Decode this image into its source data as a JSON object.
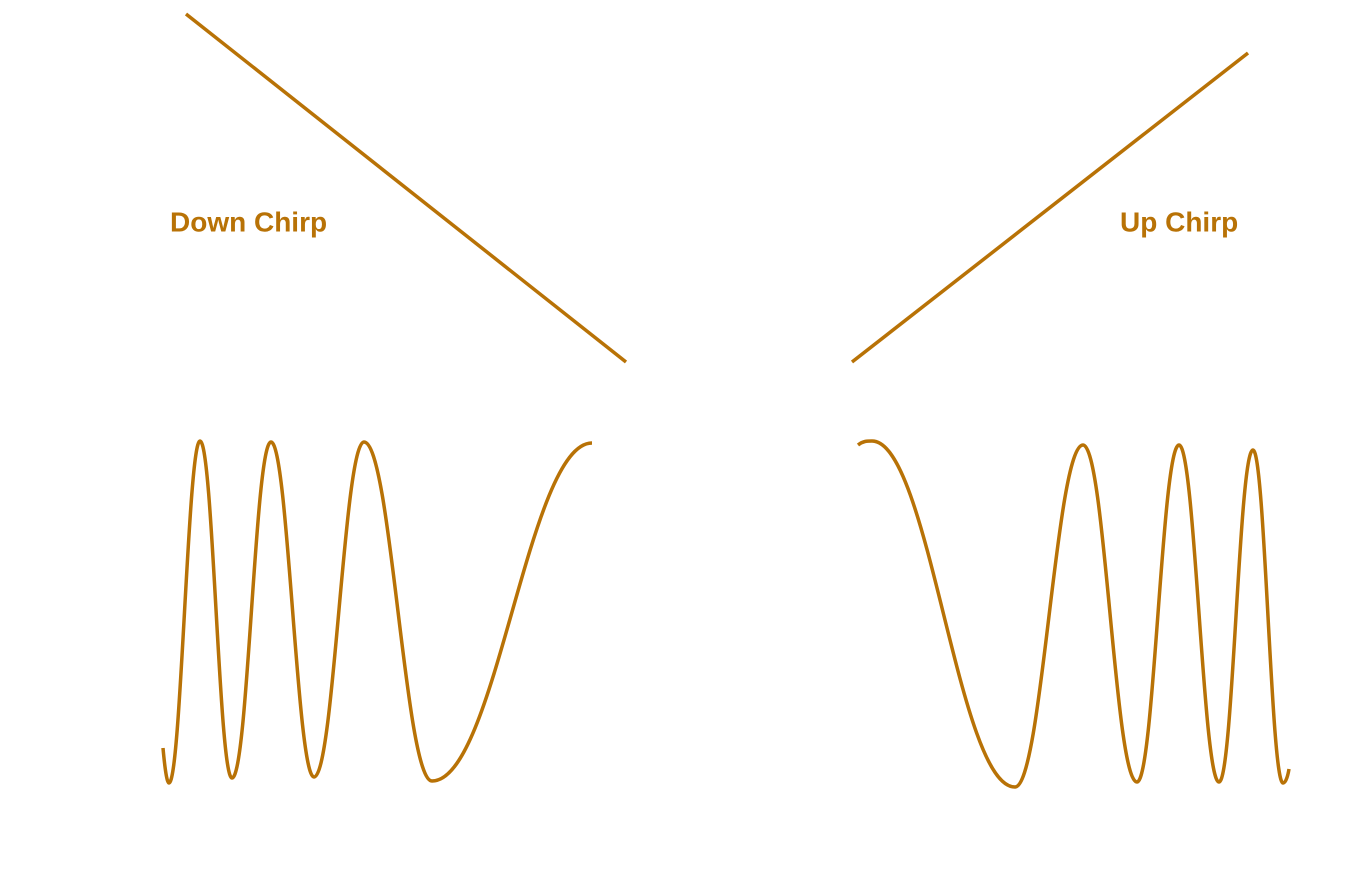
{
  "panels": [
    {
      "label": "Down Chirp"
    },
    {
      "label": "Up Chirp"
    }
  ]
}
